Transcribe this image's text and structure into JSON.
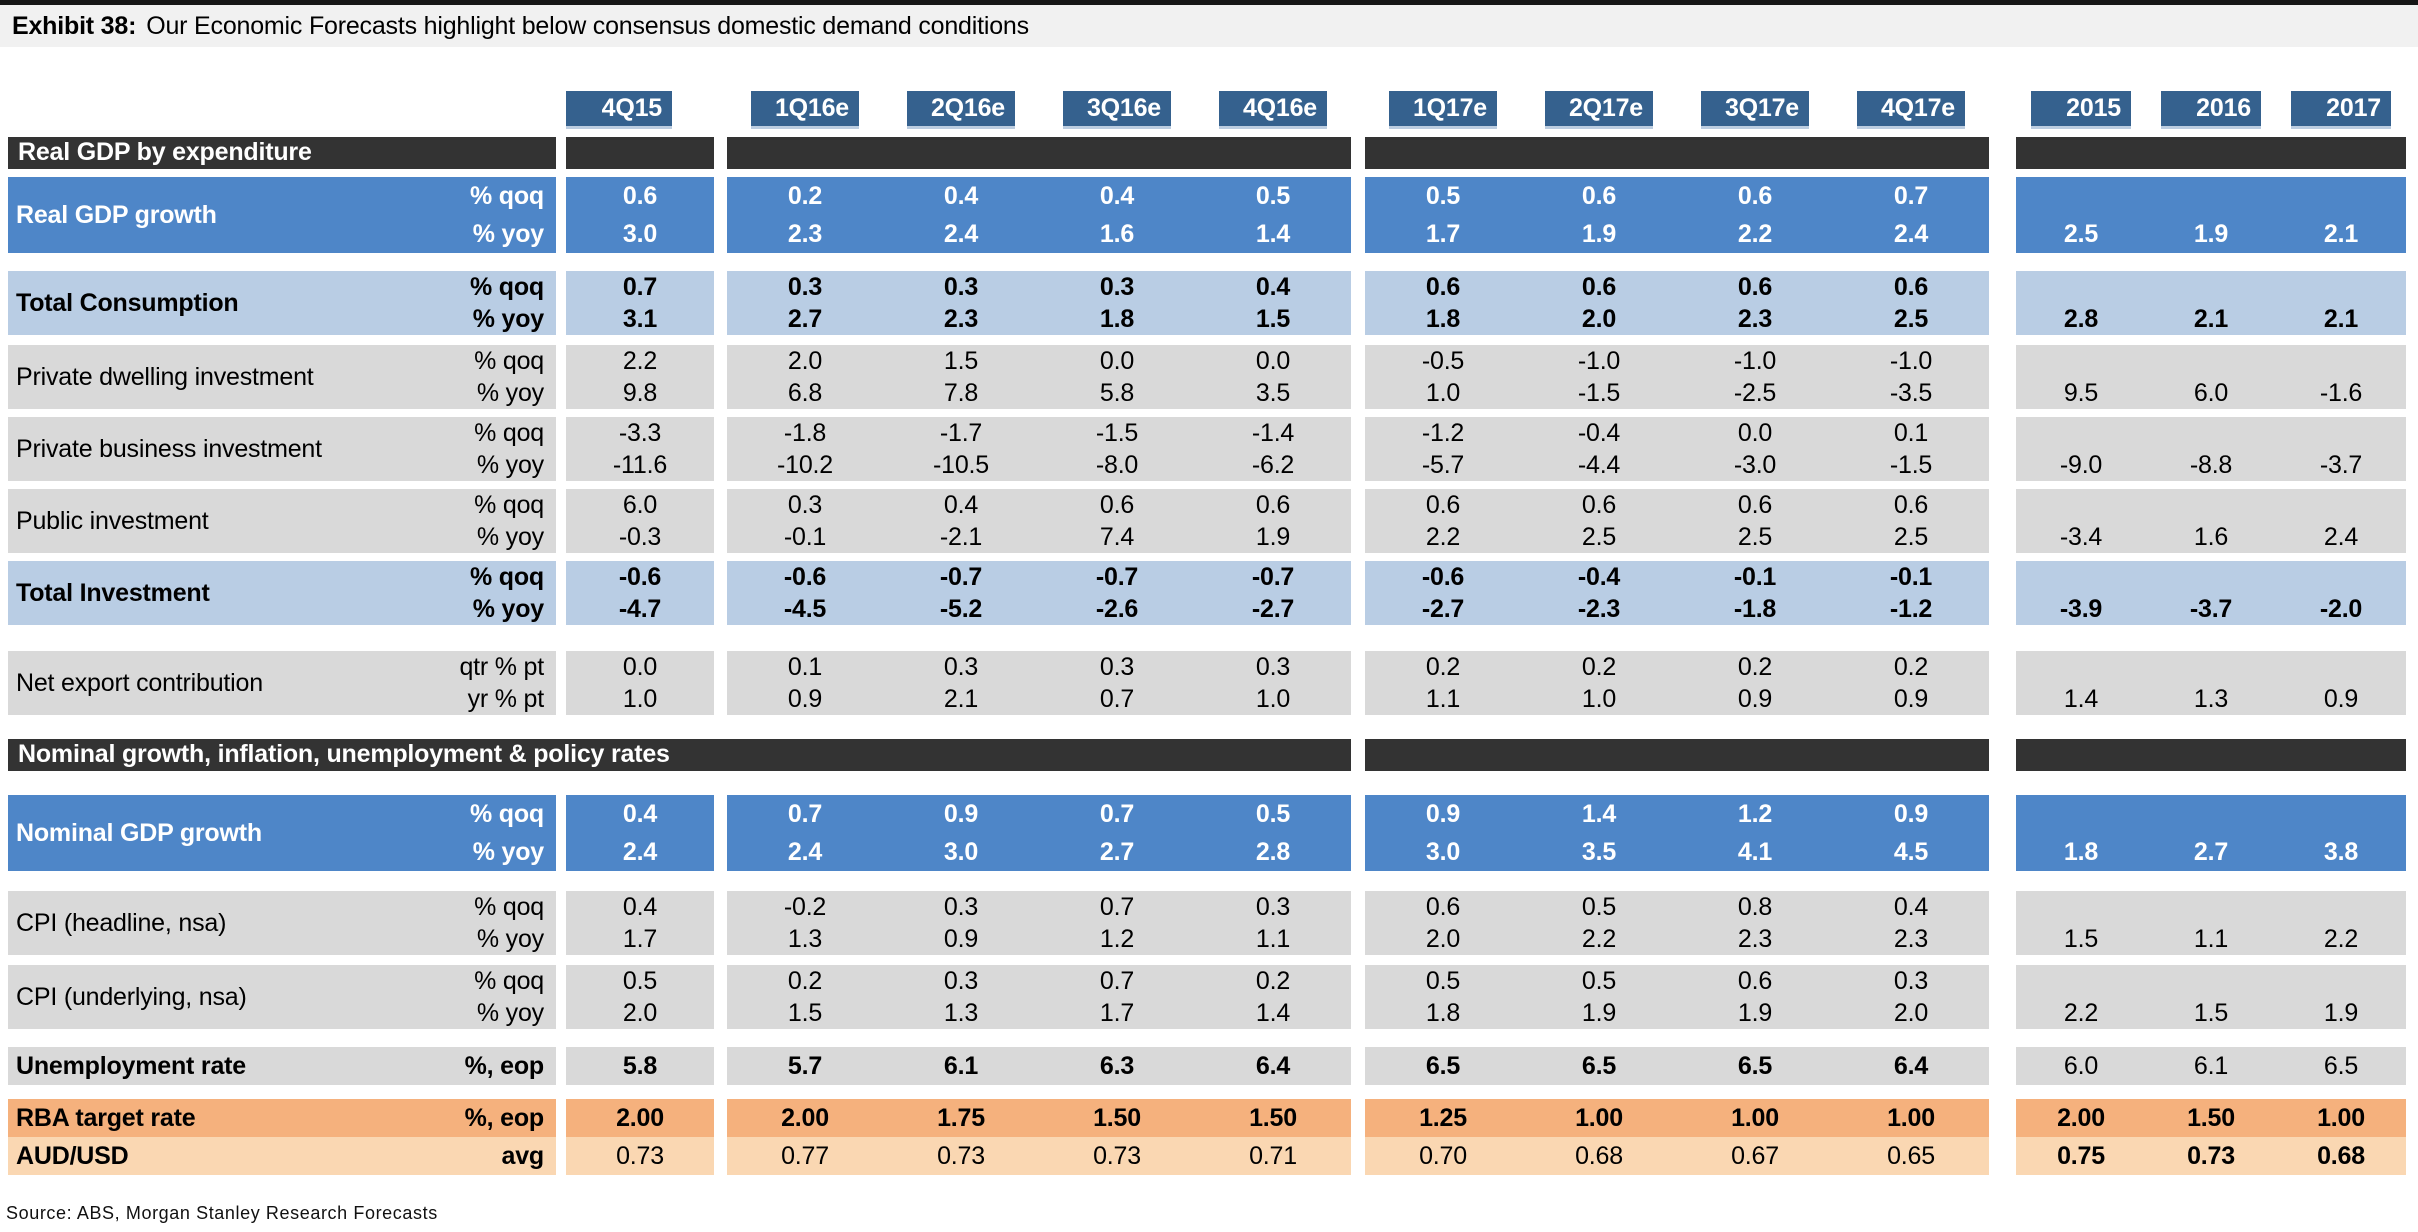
{
  "title": {
    "exhibit": "Exhibit 38:",
    "text": "Our Economic Forecasts highlight below consensus domestic demand conditions"
  },
  "columns": {
    "quarters": [
      "4Q15",
      "1Q16e",
      "2Q16e",
      "3Q16e",
      "4Q16e",
      "1Q17e",
      "2Q17e",
      "3Q17e",
      "4Q17e"
    ],
    "years": [
      "2015",
      "2016",
      "2017"
    ]
  },
  "sections": [
    {
      "header": "Real GDP by expenditure",
      "merged_bar": false,
      "rows": [
        {
          "label": "Real GDP growth",
          "style": "blue",
          "type": "paired",
          "units": [
            "% qoq",
            "% yoy"
          ],
          "qoq": [
            "0.6",
            "0.2",
            "0.4",
            "0.4",
            "0.5",
            "0.5",
            "0.6",
            "0.6",
            "0.7"
          ],
          "yoy": [
            "3.0",
            "2.3",
            "2.4",
            "1.6",
            "1.4",
            "1.7",
            "1.9",
            "2.2",
            "2.4"
          ],
          "annual": [
            "2.5",
            "1.9",
            "2.1"
          ]
        },
        {
          "label": "Total Consumption",
          "style": "lightblue",
          "type": "paired",
          "units": [
            "% qoq",
            "% yoy"
          ],
          "qoq": [
            "0.7",
            "0.3",
            "0.3",
            "0.3",
            "0.4",
            "0.6",
            "0.6",
            "0.6",
            "0.6"
          ],
          "yoy": [
            "3.1",
            "2.7",
            "2.3",
            "1.8",
            "1.5",
            "1.8",
            "2.0",
            "2.3",
            "2.5"
          ],
          "annual": [
            "2.8",
            "2.1",
            "2.1"
          ]
        },
        {
          "label": "Private dwelling investment",
          "style": "gray",
          "type": "paired",
          "units": [
            "% qoq",
            "% yoy"
          ],
          "qoq": [
            "2.2",
            "2.0",
            "1.5",
            "0.0",
            "0.0",
            "-0.5",
            "-1.0",
            "-1.0",
            "-1.0"
          ],
          "yoy": [
            "9.8",
            "6.8",
            "7.8",
            "5.8",
            "3.5",
            "1.0",
            "-1.5",
            "-2.5",
            "-3.5"
          ],
          "annual": [
            "9.5",
            "6.0",
            "-1.6"
          ]
        },
        {
          "label": "Private business investment",
          "style": "gray",
          "type": "paired",
          "units": [
            "% qoq",
            "% yoy"
          ],
          "qoq": [
            "-3.3",
            "-1.8",
            "-1.7",
            "-1.5",
            "-1.4",
            "-1.2",
            "-0.4",
            "0.0",
            "0.1"
          ],
          "yoy": [
            "-11.6",
            "-10.2",
            "-10.5",
            "-8.0",
            "-6.2",
            "-5.7",
            "-4.4",
            "-3.0",
            "-1.5"
          ],
          "annual": [
            "-9.0",
            "-8.8",
            "-3.7"
          ]
        },
        {
          "label": "Public investment",
          "style": "gray",
          "type": "paired",
          "units": [
            "% qoq",
            "% yoy"
          ],
          "qoq": [
            "6.0",
            "0.3",
            "0.4",
            "0.6",
            "0.6",
            "0.6",
            "0.6",
            "0.6",
            "0.6"
          ],
          "yoy": [
            "-0.3",
            "-0.1",
            "-2.1",
            "7.4",
            "1.9",
            "2.2",
            "2.5",
            "2.5",
            "2.5"
          ],
          "annual": [
            "-3.4",
            "1.6",
            "2.4"
          ]
        },
        {
          "label": "Total Investment",
          "style": "lightblue",
          "type": "paired",
          "units": [
            "% qoq",
            "% yoy"
          ],
          "qoq": [
            "-0.6",
            "-0.6",
            "-0.7",
            "-0.7",
            "-0.7",
            "-0.6",
            "-0.4",
            "-0.1",
            "-0.1"
          ],
          "yoy": [
            "-4.7",
            "-4.5",
            "-5.2",
            "-2.6",
            "-2.7",
            "-2.7",
            "-2.3",
            "-1.8",
            "-1.2"
          ],
          "annual": [
            "-3.9",
            "-3.7",
            "-2.0"
          ]
        },
        {
          "label": "Net export contribution",
          "style": "gray",
          "type": "paired",
          "units": [
            "qtr % pt",
            "yr % pt"
          ],
          "qoq": [
            "0.0",
            "0.1",
            "0.3",
            "0.3",
            "0.3",
            "0.2",
            "0.2",
            "0.2",
            "0.2"
          ],
          "yoy": [
            "1.0",
            "0.9",
            "2.1",
            "0.7",
            "1.0",
            "1.1",
            "1.0",
            "0.9",
            "0.9"
          ],
          "annual": [
            "1.4",
            "1.3",
            "0.9"
          ]
        }
      ]
    },
    {
      "header": "Nominal growth, inflation, unemployment & policy rates",
      "merged_bar": true,
      "rows": [
        {
          "label": "Nominal GDP growth",
          "style": "blue",
          "type": "paired",
          "units": [
            "% qoq",
            "% yoy"
          ],
          "qoq": [
            "0.4",
            "0.7",
            "0.9",
            "0.7",
            "0.5",
            "0.9",
            "1.4",
            "1.2",
            "0.9"
          ],
          "yoy": [
            "2.4",
            "2.4",
            "3.0",
            "2.7",
            "2.8",
            "3.0",
            "3.5",
            "4.1",
            "4.5"
          ],
          "annual": [
            "1.8",
            "2.7",
            "3.8"
          ]
        },
        {
          "label": "CPI (headline, nsa)",
          "style": "gray",
          "type": "paired",
          "units": [
            "% qoq",
            "% yoy"
          ],
          "qoq": [
            "0.4",
            "-0.2",
            "0.3",
            "0.7",
            "0.3",
            "0.6",
            "0.5",
            "0.8",
            "0.4"
          ],
          "yoy": [
            "1.7",
            "1.3",
            "0.9",
            "1.2",
            "1.1",
            "2.0",
            "2.2",
            "2.3",
            "2.3"
          ],
          "annual": [
            "1.5",
            "1.1",
            "2.2"
          ]
        },
        {
          "label": "CPI (underlying, nsa)",
          "style": "gray",
          "type": "paired",
          "units": [
            "% qoq",
            "% yoy"
          ],
          "qoq": [
            "0.5",
            "0.2",
            "0.3",
            "0.7",
            "0.2",
            "0.5",
            "0.5",
            "0.6",
            "0.3"
          ],
          "yoy": [
            "2.0",
            "1.5",
            "1.3",
            "1.7",
            "1.4",
            "1.8",
            "1.9",
            "1.9",
            "2.0"
          ],
          "annual": [
            "2.2",
            "1.5",
            "1.9"
          ]
        },
        {
          "label": "Unemployment rate",
          "style": "graybold",
          "type": "single",
          "units": [
            "%, eop"
          ],
          "values": [
            "5.8",
            "5.7",
            "6.1",
            "6.3",
            "6.4",
            "6.5",
            "6.5",
            "6.5",
            "6.4"
          ],
          "annual": [
            "6.0",
            "6.1",
            "6.5"
          ]
        },
        {
          "label": "RBA target rate",
          "style": "orange",
          "type": "single",
          "units": [
            "%, eop"
          ],
          "values": [
            "2.00",
            "2.00",
            "1.75",
            "1.50",
            "1.50",
            "1.25",
            "1.00",
            "1.00",
            "1.00"
          ],
          "annual": [
            "2.00",
            "1.50",
            "1.00"
          ]
        },
        {
          "label": "AUD/USD",
          "style": "orangelight",
          "type": "single",
          "units": [
            "avg"
          ],
          "values": [
            "0.73",
            "0.77",
            "0.73",
            "0.73",
            "0.71",
            "0.70",
            "0.68",
            "0.67",
            "0.65"
          ],
          "annual": [
            "0.75",
            "0.73",
            "0.68"
          ]
        }
      ]
    }
  ],
  "source": "Source: ABS, Morgan Stanley Research Forecasts",
  "colors": {
    "header_box": "#35618e",
    "section_bar": "#333333",
    "row_blue": "#4e86c8",
    "row_light_blue": "#b9cde4",
    "row_gray": "#d9d9d9",
    "row_orange": "#f5b17d",
    "row_light_orange": "#fad7b2",
    "title_bar_bg": "#f1f1f1",
    "top_border": "#161616"
  }
}
